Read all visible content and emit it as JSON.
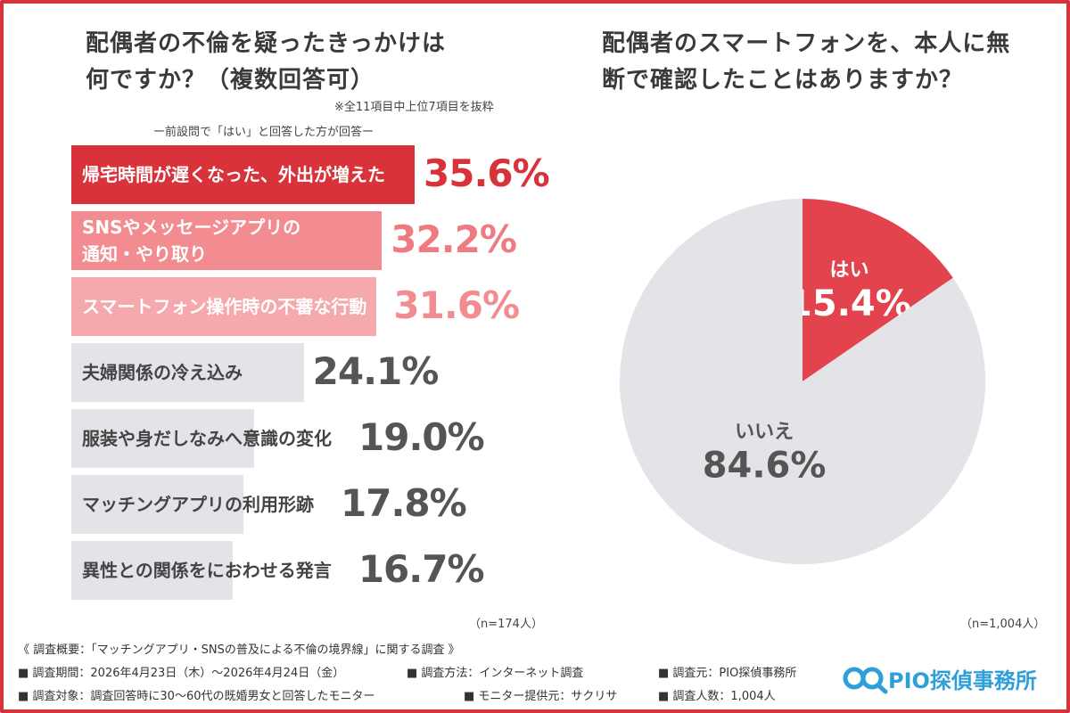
{
  "left_title": "配偶者の不倫を疑ったきっかけは\n何ですか？（複数回答可）",
  "left_note_top": "※全11項目中上位7項目を抜粋",
  "left_note_sub": "ー前設問で「はい」と回答した方が回答ー",
  "left_n": "（n=174人）",
  "right_title": "配偶者のスマートフォンを、本人に無\n断で確認したことはありますか？",
  "right_n": "（n=1,004人）",
  "colors": {
    "frame": "#d8333b",
    "bar_red": "#d8333b",
    "bar_pink": "#f28c91",
    "bar_lightpink": "#f6a9ad",
    "bar_gray": "#e4e4e8",
    "pie_red": "#e2434c",
    "pie_gray": "#e4e4e8",
    "logo": "#2f9fd8"
  },
  "chart_data": [
    {
      "type": "bar",
      "orientation": "horizontal",
      "categories": [
        "帰宅時間が遅くなった、外出が増えた",
        "SNSやメッセージアプリの\n通知・やり取り",
        "スマートフォン操作時の不審な行動",
        "夫婦関係の冷え込み",
        "服装や身だしなみへ意識の変化",
        "マッチングアプリの利用形跡",
        "異性との関係をにおわせる発言"
      ],
      "values": [
        35.6,
        32.2,
        31.6,
        24.1,
        19.0,
        17.8,
        16.7
      ],
      "value_labels": [
        "35.6%",
        "32.2%",
        "31.6%",
        "24.1%",
        "19.0%",
        "17.8%",
        "16.7%"
      ],
      "bar_colors": [
        "#d8333b",
        "#f28c91",
        "#f6a9ad",
        "#e4e4e8",
        "#e4e4e8",
        "#e4e4e8",
        "#e4e4e8"
      ],
      "label_colors": [
        "#ffffff",
        "#ffffff",
        "#ffffff",
        "#444444",
        "#444444",
        "#444444",
        "#444444"
      ],
      "value_colors": [
        "#d8333b",
        "#ef7b82",
        "#f28c91",
        "#555555",
        "#555555",
        "#555555",
        "#555555"
      ]
    },
    {
      "type": "pie",
      "labels": [
        "はい",
        "いいえ"
      ],
      "values": [
        15.4,
        84.6
      ],
      "value_labels": [
        "15.4%",
        "84.6%"
      ],
      "colors": [
        "#e2434c",
        "#e4e4e8"
      ]
    }
  ],
  "footer": {
    "summary": "《 調査概要：「マッチングアプリ・SNSの普及による不倫の境界線」に関する調査 》",
    "period": "■ 調査期間：2026年4月23日（木）～2026年4月24日（金）",
    "method": "■ 調査方法：インターネット調査",
    "source": "■ 調査元：PIO探偵事務所",
    "target": "■ 調査対象：調査回答時に30～60代の既婚男女と回答したモニター",
    "provider": "■ モニター提供元：サクリサ",
    "count": "■ 調査人数：1,004人"
  },
  "logo": {
    "text": "PIO探偵事務所",
    "icon": "magnifier-logo-icon"
  }
}
